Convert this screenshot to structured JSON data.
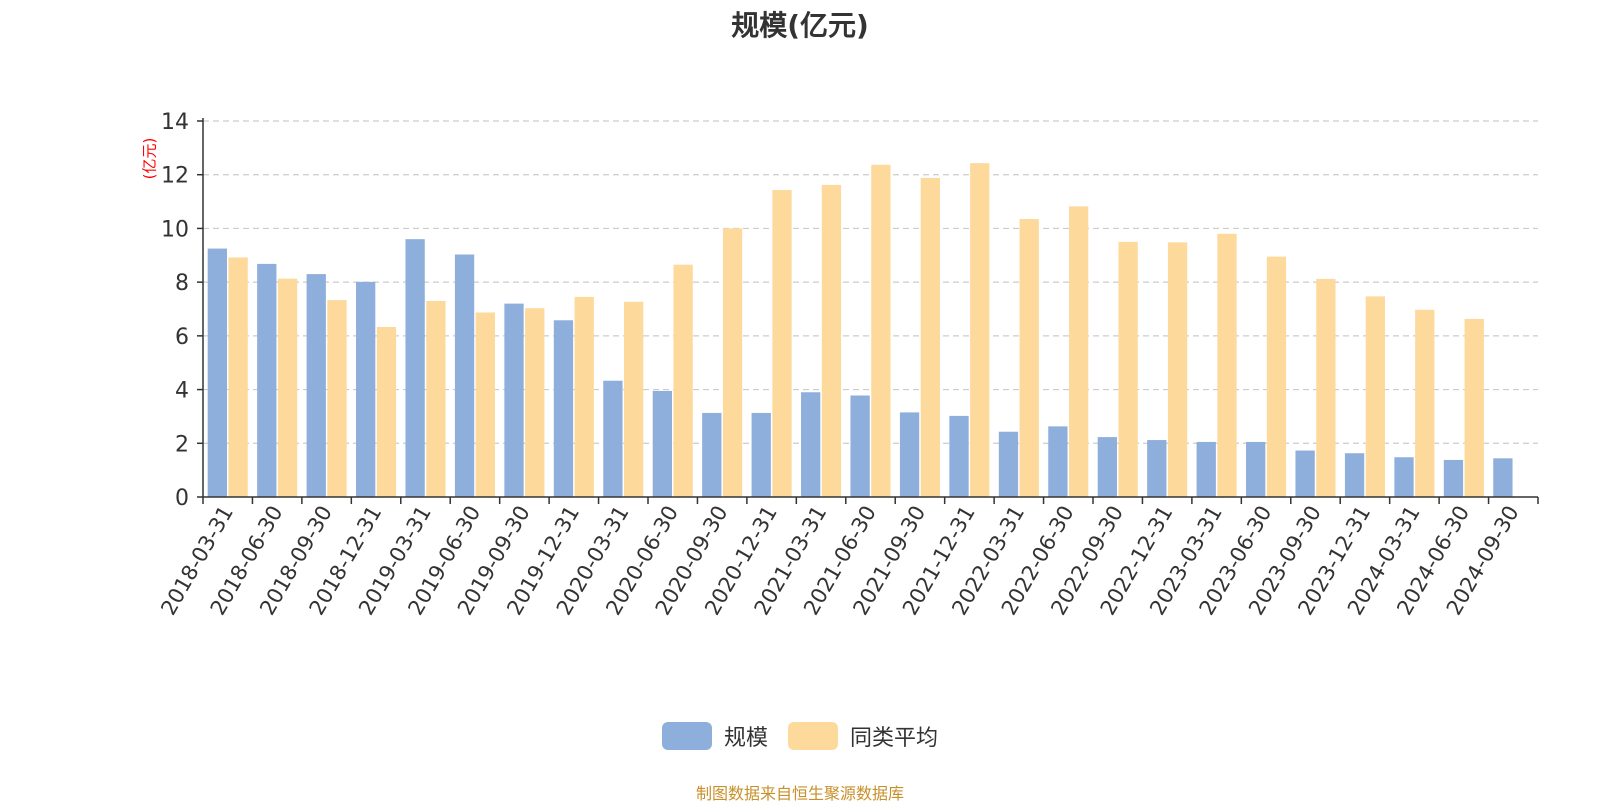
{
  "title": "规模(亿元)",
  "y_unit_label": "(亿元)",
  "source_note": "制图数据来自恒生聚源数据库",
  "colors": {
    "scale": "#8eaedc",
    "peer_avg": "#fdd99b",
    "grid": "#cccccc",
    "axis": "#333333",
    "unit": "#ff0000"
  },
  "chart_data": {
    "type": "bar",
    "title": "规模(亿元)",
    "ylabel": "(亿元)",
    "ylim": [
      0,
      14
    ],
    "yticks": [
      0,
      2,
      4,
      6,
      8,
      10,
      12,
      14
    ],
    "grid": true,
    "legend_position": "bottom",
    "categories": [
      "2018-03-31",
      "2018-06-30",
      "2018-09-30",
      "2018-12-31",
      "2019-03-31",
      "2019-06-30",
      "2019-09-30",
      "2019-12-31",
      "2020-03-31",
      "2020-06-30",
      "2020-09-30",
      "2020-12-31",
      "2021-03-31",
      "2021-06-30",
      "2021-09-30",
      "2021-12-31",
      "2022-03-31",
      "2022-06-30",
      "2022-09-30",
      "2022-12-31",
      "2023-03-31",
      "2023-06-30",
      "2023-09-30",
      "2023-12-31",
      "2024-03-31",
      "2024-06-30",
      "2024-09-30"
    ],
    "series": [
      {
        "name": "规模",
        "color": "#8eaedc",
        "values": [
          9.25,
          8.68,
          8.3,
          8.01,
          9.6,
          9.03,
          7.2,
          6.58,
          4.33,
          3.95,
          3.13,
          3.13,
          3.9,
          3.78,
          3.15,
          3.02,
          2.43,
          2.63,
          2.23,
          2.12,
          2.05,
          2.05,
          1.73,
          1.63,
          1.48,
          1.38,
          1.44
        ]
      },
      {
        "name": "同类平均",
        "color": "#fdd99b",
        "values": [
          8.92,
          8.13,
          7.33,
          6.33,
          7.3,
          6.87,
          7.03,
          7.45,
          7.27,
          8.65,
          10.0,
          11.43,
          11.62,
          12.37,
          11.88,
          12.43,
          10.35,
          10.82,
          9.5,
          9.48,
          9.8,
          8.95,
          8.12,
          7.47,
          6.97,
          6.63,
          null
        ]
      }
    ]
  }
}
